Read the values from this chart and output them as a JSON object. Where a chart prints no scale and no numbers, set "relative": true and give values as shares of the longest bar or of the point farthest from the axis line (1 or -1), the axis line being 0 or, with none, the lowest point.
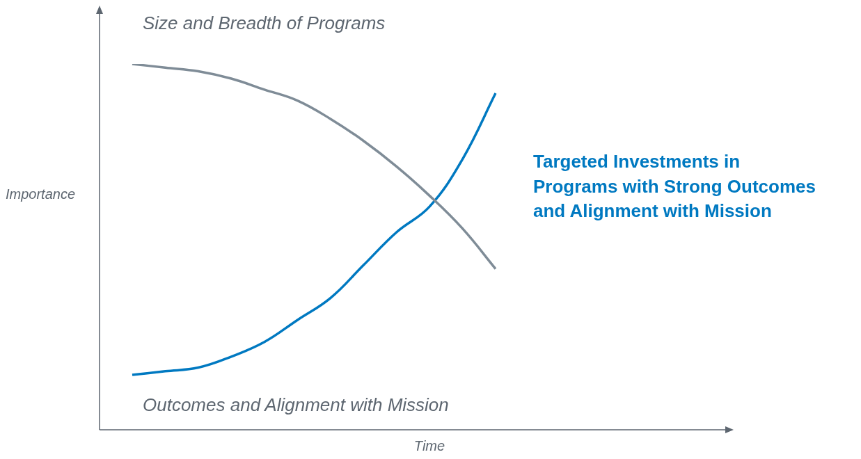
{
  "chart_data": {
    "type": "line",
    "relative": true,
    "xlabel": "Time",
    "ylabel": "Importance",
    "categories": [
      null,
      null,
      null,
      null,
      null,
      null,
      null,
      null,
      null,
      null,
      null,
      null
    ],
    "series": [
      {
        "name": "Size and Breadth of Programs",
        "color": "#7f8c97",
        "values": [
          1.0,
          0.99,
          0.98,
          0.96,
          0.93,
          0.9,
          0.85,
          0.79,
          0.72,
          0.64,
          0.55,
          0.44
        ]
      },
      {
        "name": "Outcomes and Alignment with Mission",
        "color": "#0079c1",
        "values": [
          0.15,
          0.16,
          0.17,
          0.2,
          0.24,
          0.3,
          0.36,
          0.45,
          0.54,
          0.61,
          0.74,
          0.92
        ]
      }
    ],
    "annotations": [
      "Targeted Investments in Programs with Strong Outcomes and Alignment with Mission"
    ],
    "marker": "none",
    "line_style": "solid",
    "legend": false
  }
}
